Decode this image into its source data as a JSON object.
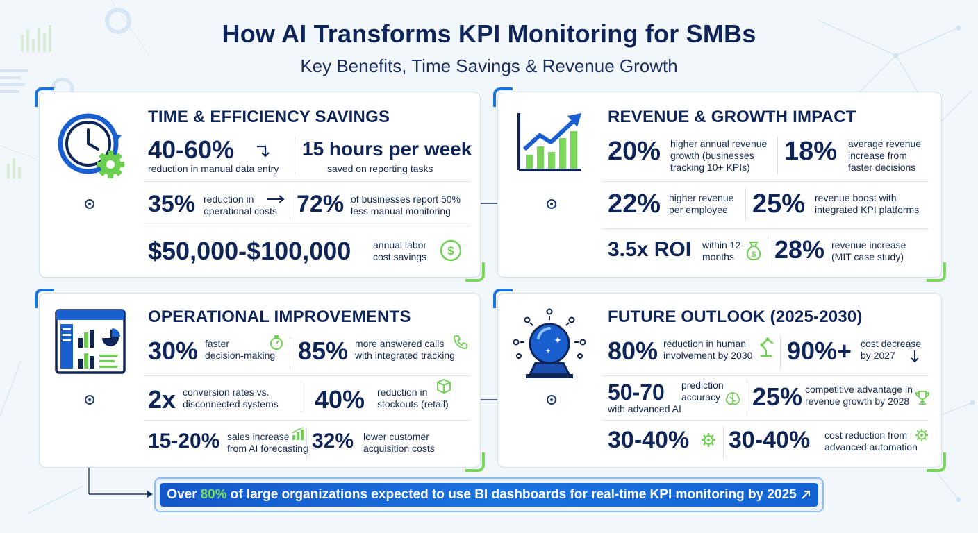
{
  "header": {
    "title": "How AI Transforms KPI Monitoring for SMBs",
    "subtitle": "Key Benefits, Time Savings & Revenue Growth"
  },
  "colors": {
    "navy": "#0f2557",
    "blue": "#1a73d8",
    "green": "#7ad65b",
    "banner": "#1a6ad8"
  },
  "panels": {
    "time": {
      "title": "TIME & EFFICIENCY SAVINGS",
      "icon": "clock-gear-icon",
      "stats": [
        {
          "value": "40-60%",
          "label": "reduction in manual data entry",
          "icon": "arrow-down-right-icon"
        },
        {
          "value": "15 hours per week",
          "label": "saved on reporting tasks"
        },
        {
          "value": "35%",
          "label_lines": [
            "reduction in",
            "operational costs"
          ],
          "icon": "arrow-right-icon"
        },
        {
          "value": "72%",
          "label_lines": [
            "of businesses report 50%",
            "less manual monitoring"
          ]
        },
        {
          "value": "$50,000-$100,000",
          "label_lines": [
            "annual labor",
            "cost savings"
          ],
          "icon": "dollar-coin-icon"
        }
      ]
    },
    "revenue": {
      "title": "REVENUE & GROWTH IMPACT",
      "icon": "growth-chart-icon",
      "stats": [
        {
          "value": "20%",
          "label_lines": [
            "higher annual revenue",
            "growth (businesses",
            "tracking 10+ KPIs)"
          ]
        },
        {
          "value": "18%",
          "label_lines": [
            "average revenue",
            "increase from",
            "faster decisions"
          ]
        },
        {
          "value": "22%",
          "label_lines": [
            "higher revenue",
            "per employee"
          ]
        },
        {
          "value": "25%",
          "label_lines": [
            "revenue boost with",
            "integrated KPI platforms"
          ]
        },
        {
          "value": "3.5x ROI",
          "label_lines": [
            "within 12",
            "months"
          ],
          "icon": "money-bag-icon"
        },
        {
          "value": "28%",
          "label_lines": [
            "revenue increase",
            "(MIT case study)"
          ]
        }
      ]
    },
    "operations": {
      "title": "OPERATIONAL IMPROVEMENTS",
      "icon": "dashboard-window-icon",
      "stats": [
        {
          "value": "30%",
          "label_lines": [
            "faster",
            "decision-making"
          ],
          "icon": "stopwatch-icon"
        },
        {
          "value": "85%",
          "label_lines": [
            "more answered calls",
            "with integrated tracking"
          ],
          "icon": "phone-icon"
        },
        {
          "value": "2x",
          "label_lines": [
            "conversion rates vs.",
            "disconnected systems"
          ]
        },
        {
          "value": "40%",
          "label_lines": [
            "reduction in",
            "stockouts (retail)"
          ],
          "icon": "box-icon"
        },
        {
          "value": "15-20%",
          "label_lines": [
            "sales increase",
            "from AI forecasting"
          ],
          "icon": "bar-chart-icon"
        },
        {
          "value": "32%",
          "label_lines": [
            "lower customer",
            "acquisition costs"
          ]
        }
      ]
    },
    "future": {
      "title": "FUTURE OUTLOOK (2025-2030)",
      "icon": "crystal-ball-icon",
      "stats": [
        {
          "value": "80%",
          "label_lines": [
            "reduction in human",
            "involvement by 2030"
          ],
          "icon": "robot-arm-icon"
        },
        {
          "value": "90%+",
          "label_lines": [
            "cost decrease",
            "by 2027"
          ],
          "icon": "arrow-down-icon"
        },
        {
          "value": "50-70",
          "label_lines": [
            "prediction",
            "accuracy"
          ],
          "sub": "with advanced AI",
          "icon": "brain-icon"
        },
        {
          "value": "25%",
          "label_lines": [
            "competitive advantage in",
            "revenue growth by 2028"
          ],
          "icon": "trophy-icon"
        },
        {
          "value": "30-40%",
          "icon": "gear-icon"
        },
        {
          "value": "30-40%",
          "label_lines": [
            "cost reduction from",
            "advanced automation"
          ],
          "icon": "gear-icon"
        }
      ]
    }
  },
  "banner": {
    "prefix": "Over",
    "highlight": "80%",
    "suffix": "of large organizations expected to use BI dashboards for real-time KPI monitoring by 2025",
    "icon": "arrow-up-right-icon"
  }
}
